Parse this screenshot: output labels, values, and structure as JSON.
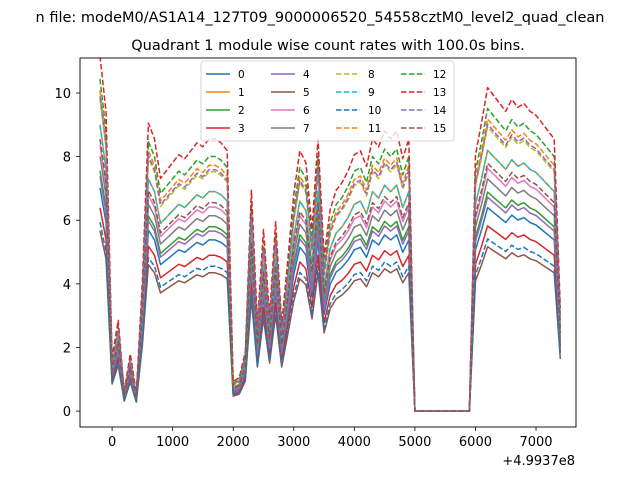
{
  "chart_data": {
    "type": "line",
    "suptitle": "n file: modeM0/AS1A14_127T09_9000006520_54558cztM0_level2_quad_clean",
    "title": "Quadrant 1 module wise count rates with 100.0s bins.",
    "xlabel": "",
    "ylabel": "",
    "offset_label": "+4.9937e8",
    "xlim": [
      -530,
      7660
    ],
    "ylim": [
      -0.5,
      11.1
    ],
    "xticks": [
      0,
      1000,
      2000,
      3000,
      4000,
      5000,
      6000,
      7000
    ],
    "xtick_labels": [
      "0",
      "1000",
      "2000",
      "3000",
      "4000",
      "5000",
      "6000",
      "7000"
    ],
    "yticks": [
      0,
      2,
      4,
      6,
      8,
      10
    ],
    "ytick_labels": [
      "0",
      "2",
      "4",
      "6",
      "8",
      "10"
    ],
    "legend_location": "upper center, 4 columns",
    "x": [
      -200,
      -100,
      0,
      100,
      200,
      300,
      400,
      500,
      600,
      700,
      800,
      900,
      1000,
      1100,
      1200,
      1300,
      1400,
      1500,
      1600,
      1700,
      1800,
      1900,
      2000,
      2100,
      2200,
      2300,
      2400,
      2500,
      2600,
      2700,
      2800,
      2900,
      3000,
      3100,
      3200,
      3300,
      3400,
      3500,
      3600,
      3700,
      3800,
      3900,
      4000,
      4100,
      4200,
      4300,
      4400,
      4500,
      4600,
      4700,
      4800,
      4900,
      5000,
      5100,
      5200,
      5300,
      5400,
      5500,
      5600,
      5700,
      5800,
      5900,
      6000,
      6100,
      6200,
      6300,
      6400,
      6500,
      6600,
      6700,
      6800,
      6900,
      7000,
      7100,
      7200,
      7300,
      7400
    ],
    "base_profile": [
      9.0,
      7.6,
      1.35,
      2.3,
      0.5,
      1.45,
      0.45,
      3.3,
      7.3,
      6.9,
      5.9,
      6.1,
      6.3,
      6.5,
      6.4,
      6.6,
      6.8,
      6.7,
      6.9,
      6.9,
      6.8,
      6.6,
      0.75,
      0.85,
      1.5,
      5.6,
      2.2,
      4.6,
      2.4,
      4.8,
      2.2,
      3.8,
      5.5,
      6.6,
      6.3,
      4.6,
      6.9,
      3.9,
      5.1,
      5.6,
      5.8,
      6.1,
      6.5,
      6.6,
      6.2,
      6.9,
      6.7,
      7.1,
      6.9,
      7.1,
      6.4,
      6.9,
      0.0,
      0.0,
      0.0,
      0.0,
      0.0,
      0.0,
      0.0,
      0.0,
      0.0,
      0.0,
      6.5,
      7.3,
      8.2,
      8.0,
      7.8,
      7.6,
      7.9,
      7.7,
      7.8,
      7.6,
      7.5,
      7.3,
      7.1,
      6.9,
      2.6
    ],
    "series": [
      {
        "name": "0",
        "scale": 0.78,
        "color": "#1f77b4",
        "style": "solid"
      },
      {
        "name": "1",
        "scale": 1.0,
        "color": "#ff7f0e",
        "style": "solid"
      },
      {
        "name": "2",
        "scale": 0.84,
        "color": "#2ca02c",
        "style": "solid"
      },
      {
        "name": "3",
        "scale": 0.71,
        "color": "#d62728",
        "style": "solid"
      },
      {
        "name": "4",
        "scale": 0.82,
        "color": "#9467bd",
        "style": "solid"
      },
      {
        "name": "5",
        "scale": 0.63,
        "color": "#8c564b",
        "style": "solid"
      },
      {
        "name": "6",
        "scale": 0.93,
        "color": "#e377c2",
        "style": "solid"
      },
      {
        "name": "7",
        "scale": 0.89,
        "color": "#7f7f7f",
        "style": "solid"
      },
      {
        "name": "8",
        "scale": 1.09,
        "color": "#bcbd22",
        "style": "dashed"
      },
      {
        "name": "9",
        "scale": 1.0,
        "color": "#17becf",
        "style": "dashed"
      },
      {
        "name": "10",
        "scale": 0.66,
        "color": "#1f77b4",
        "style": "dashed"
      },
      {
        "name": "11",
        "scale": 1.12,
        "color": "#ff7f0e",
        "style": "dashed"
      },
      {
        "name": "12",
        "scale": 1.16,
        "color": "#2ca02c",
        "style": "dashed"
      },
      {
        "name": "13",
        "scale": 1.24,
        "color": "#d62728",
        "style": "dashed"
      },
      {
        "name": "14",
        "scale": 1.1,
        "color": "#9467bd",
        "style": "dashed"
      },
      {
        "name": "15",
        "scale": 0.95,
        "color": "#8c564b",
        "style": "dashed"
      }
    ]
  }
}
